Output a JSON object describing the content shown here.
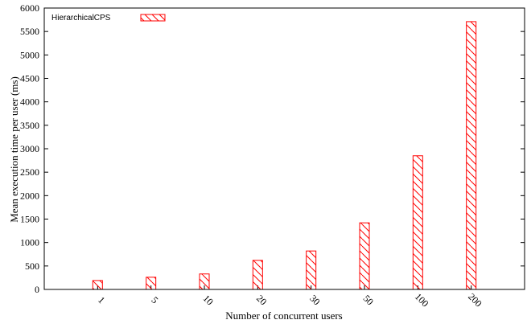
{
  "chart_data": {
    "type": "bar",
    "categories": [
      "1",
      "5",
      "10",
      "20",
      "30",
      "50",
      "100",
      "200"
    ],
    "series": [
      {
        "name": "HierarchicalCPS",
        "values": [
          190,
          260,
          330,
          620,
          820,
          1420,
          2850,
          5710
        ],
        "color": "#ff0000"
      }
    ],
    "xlabel": "Number of concurrent users",
    "ylabel": "Mean execution time per user (ms)",
    "ylim": [
      0,
      6000
    ],
    "yticks": [
      0,
      500,
      1000,
      1500,
      2000,
      2500,
      3000,
      3500,
      4000,
      4500,
      5000,
      5500,
      6000
    ],
    "legend_position": "top-left",
    "grid": false,
    "bar_pattern": "diagonal-hatch"
  }
}
